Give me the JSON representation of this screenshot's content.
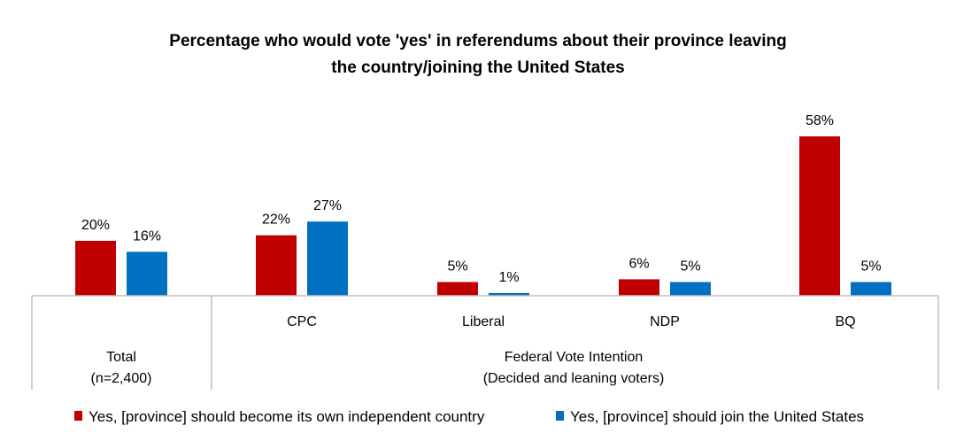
{
  "colors": {
    "red": "#c00000",
    "blue": "#0070c0",
    "axis": "#bfbfbf"
  },
  "chart_data": {
    "type": "bar",
    "title": "Percentage who would vote 'yes' in referendums about their province leaving the country/joining the United States",
    "title_lines": [
      "Percentage who would vote 'yes' in referendums about their province leaving",
      "the country/joining the United States"
    ],
    "categories": [
      "Total (n=2,400)",
      "CPC",
      "Liberal",
      "NDP",
      "BQ"
    ],
    "series": [
      {
        "name": "Yes, [province] should become its own independent country",
        "values": [
          20,
          22,
          5,
          6,
          58
        ],
        "labels": [
          "20%",
          "22%",
          "5%",
          "6%",
          "58%"
        ]
      },
      {
        "name": "Yes, [province] should join the United States",
        "values": [
          16,
          27,
          1,
          5,
          5
        ],
        "labels": [
          "16%",
          "27%",
          "1%",
          "5%",
          "5%"
        ]
      }
    ],
    "ylim": [
      0,
      65
    ],
    "xlabel": "",
    "ylabel": "",
    "legend_position": "bottom",
    "axis": {
      "total_label": "Total",
      "total_sub": "(n=2,400)",
      "group_labels": [
        "CPC",
        "Liberal",
        "NDP",
        "BQ"
      ],
      "group_title": "Federal Vote Intention",
      "group_sub": "(Decided and leaning voters)"
    }
  }
}
